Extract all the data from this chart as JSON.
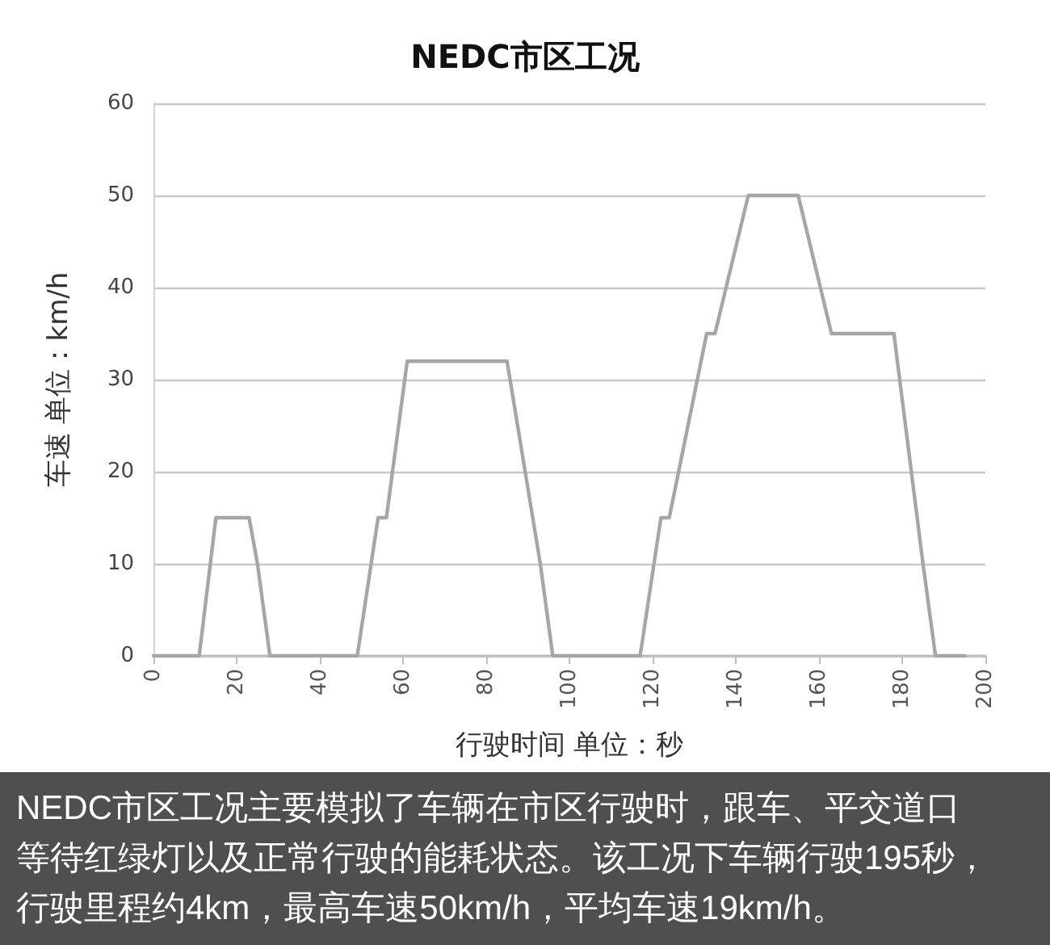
{
  "chart_data": {
    "type": "line",
    "title": "NEDC市区工况",
    "xlabel": "行驶时间 单位：秒",
    "ylabel": "车速 单位：km/h",
    "annotations": [
      "NEDC市区工况主要模拟了车辆在市区行驶时，跟车、平交道口等待红绿灯以及正常行驶的能耗状态。该工况下车辆行驶195秒，行驶里程约4km，最高车速50km/h，平均车速19km/h。"
    ],
    "series": [
      {
        "color": "#a6a6a6",
        "x": [
          0,
          11,
          15,
          23,
          25,
          28,
          49,
          54,
          56,
          61,
          85,
          93,
          96,
          117,
          122,
          124,
          133,
          135,
          143,
          155,
          163,
          178,
          185,
          188,
          195
        ],
        "values": [
          0,
          0,
          15,
          15,
          10,
          0,
          0,
          15,
          15,
          32,
          32,
          10,
          0,
          0,
          15,
          15,
          35,
          35,
          50,
          50,
          35,
          35,
          10,
          0,
          0
        ]
      }
    ],
    "xlim": [
      0,
      200
    ],
    "xticks": [
      0,
      20,
      40,
      60,
      80,
      100,
      120,
      140,
      160,
      180,
      200
    ],
    "ylim": [
      0,
      60
    ],
    "yticks": [
      0,
      10,
      20,
      30,
      40,
      50,
      60
    ],
    "grid": "y",
    "marker": "none",
    "line_style": "solid"
  }
}
